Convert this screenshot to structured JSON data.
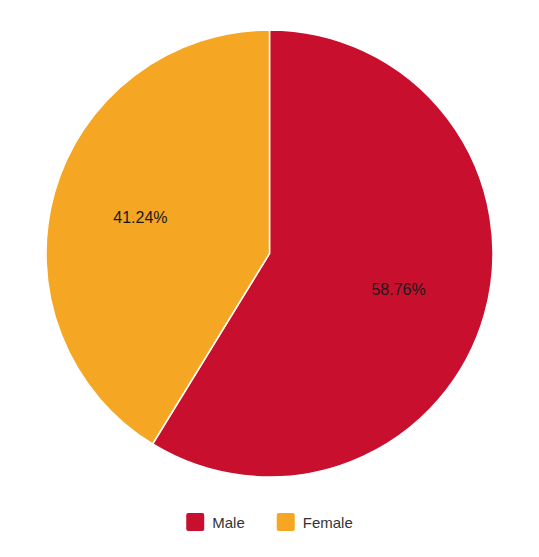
{
  "chart_data": {
    "type": "pie",
    "categories": [
      "Male",
      "Female"
    ],
    "values": [
      58.76,
      41.24
    ],
    "colors": [
      "#C8102E",
      "#F5A623"
    ],
    "data_labels": true,
    "value_labels": [
      "58.76%",
      "41.24%"
    ],
    "legend": "bottom"
  }
}
